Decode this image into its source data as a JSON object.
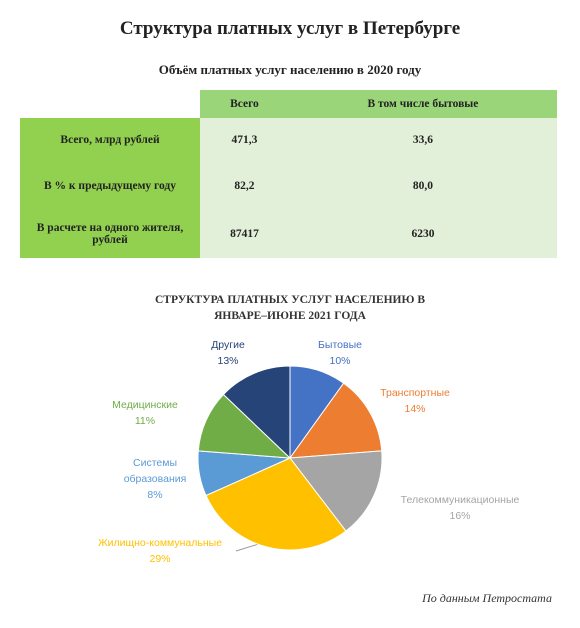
{
  "title": "Структура платных услуг в Петербурге",
  "table": {
    "title": "Объём платных услуг населению в 2020 году",
    "columns": [
      "Всего",
      "В том числе бытовые"
    ],
    "rows": [
      [
        "Всего, млрд рублей",
        "471,3",
        "33,6"
      ],
      [
        "В % к предыдущему году",
        "82,2",
        "80,0"
      ],
      [
        "В расчете на одного жителя, рублей",
        "87417",
        "6230"
      ]
    ]
  },
  "chart_data": {
    "type": "pie",
    "title": "СТРУКТУРА ПЛАТНЫХ УСЛУГ НАСЕЛЕНИЮ В ЯНВАРЕ–ИЮНЕ 2021 ГОДА",
    "categories": [
      "Бытовые",
      "Транспортные",
      "Телекоммуникационные",
      "Жилищно-коммунальные",
      "Системы образования",
      "Медицинские",
      "Другие"
    ],
    "values": [
      10,
      14,
      16,
      29,
      8,
      11,
      13
    ],
    "value_labels": [
      "10%",
      "14%",
      "16%",
      "29%",
      "8%",
      "11%",
      "13%"
    ],
    "colors": [
      "#4472c4",
      "#ed7d31",
      "#a5a5a5",
      "#ffc000",
      "#5b9bd5",
      "#70ad47",
      "#264478"
    ]
  },
  "source": "По данным Петростата"
}
